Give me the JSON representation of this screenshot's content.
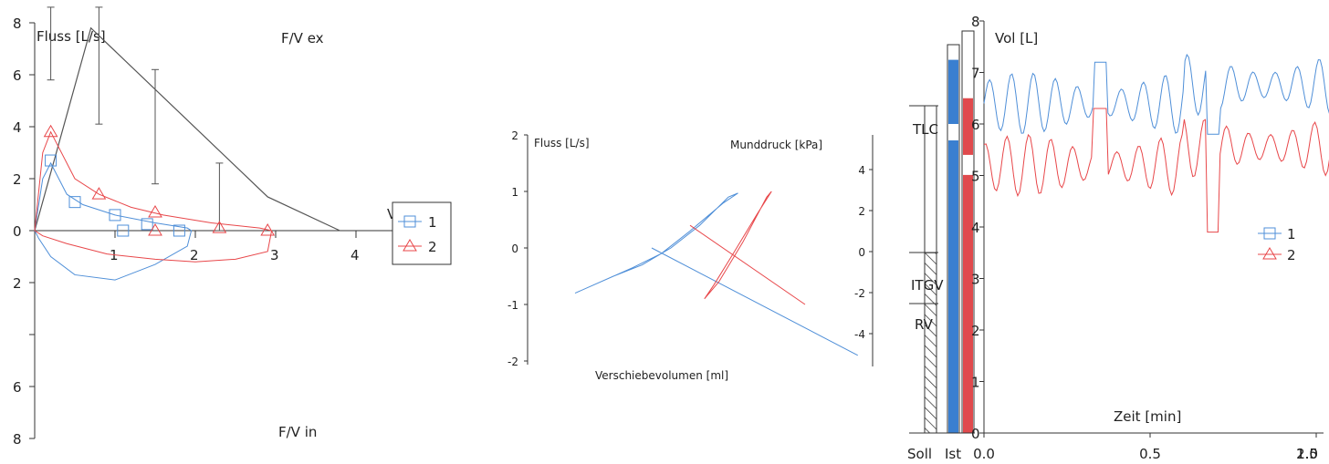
{
  "colors": {
    "series1": "#4f8fd8",
    "series2": "#e8474a",
    "reference": "#555555",
    "axis": "#333333",
    "bar_blue": "#3a7fd0",
    "bar_red": "#e04a4d"
  },
  "chart_data": [
    {
      "type": "line",
      "panel": "flow-volume",
      "title_top": "F/V ex",
      "title_bottom": "F/V in",
      "ylabel": "Fluss [L/s]",
      "xlabel": "V",
      "y_ticks": [
        "8",
        "6",
        "4",
        "2",
        "0",
        "2",
        "",
        "6",
        "8"
      ],
      "y_tick_values": [
        8,
        6,
        4,
        2,
        0,
        -2,
        -4,
        -6,
        -8
      ],
      "x_ticks": [
        "1",
        "2",
        "3",
        "4"
      ],
      "x_tick_values": [
        1,
        2,
        3,
        4
      ],
      "xlim": [
        0,
        4.5
      ],
      "ylim": [
        -8,
        8
      ],
      "reference_curve": {
        "x": [
          0,
          0.7,
          2.9,
          3.8
        ],
        "y": [
          0,
          7.8,
          1.3,
          0
        ]
      },
      "error_bars": [
        {
          "x": 0.2,
          "y": 8.3,
          "lo": 5.8,
          "hi": 8.6
        },
        {
          "x": 0.8,
          "y": 7.6,
          "lo": 4.1,
          "hi": 8.6
        },
        {
          "x": 1.5,
          "y": 4.0,
          "lo": 1.8,
          "hi": 6.2
        },
        {
          "x": 2.3,
          "y": 1.3,
          "lo": 0.0,
          "hi": 2.6
        }
      ],
      "series": [
        {
          "name": "1",
          "marker": "square",
          "x": [
            0,
            0.1,
            0.2,
            0.4,
            0.6,
            1.0,
            1.5,
            1.9,
            1.95,
            1.9,
            1.5,
            1.0,
            0.5,
            0.2,
            0.05,
            0
          ],
          "y": [
            0,
            2.0,
            2.6,
            1.4,
            1.0,
            0.6,
            0.3,
            0.1,
            0,
            -0.6,
            -1.3,
            -1.9,
            -1.7,
            -1.0,
            -0.3,
            0
          ],
          "markers_x": [
            0.2,
            0.5,
            1.0,
            1.1,
            1.4,
            1.8
          ],
          "markers_y": [
            2.7,
            1.1,
            0.6,
            0,
            0.25,
            0
          ]
        },
        {
          "name": "2",
          "marker": "triangle",
          "x": [
            0,
            0.1,
            0.2,
            0.5,
            0.8,
            1.2,
            1.6,
            2.2,
            2.8,
            2.95,
            2.9,
            2.5,
            2.0,
            1.5,
            0.9,
            0.4,
            0.1,
            0
          ],
          "y": [
            0,
            3.0,
            3.8,
            2.0,
            1.4,
            0.9,
            0.6,
            0.3,
            0.1,
            0,
            -0.8,
            -1.1,
            -1.2,
            -1.1,
            -0.9,
            -0.5,
            -0.2,
            0
          ],
          "markers_x": [
            0.2,
            0.8,
            1.5,
            1.5,
            2.3,
            2.9
          ],
          "markers_y": [
            3.8,
            1.4,
            0.7,
            0,
            0.1,
            0
          ]
        }
      ]
    },
    {
      "type": "line",
      "panel": "pressure-volume",
      "ylabel_left": "Fluss [L/s]",
      "ylabel_right": "Munddruck [kPa]",
      "xlabel": "Verschiebevolumen [ml]",
      "left_ticks": [
        "2",
        "1",
        "0",
        "-1",
        "-2"
      ],
      "left_tick_values": [
        2,
        1,
        0,
        -1,
        -2
      ],
      "right_ticks": [
        "4",
        "2",
        "0",
        "-2",
        "-4"
      ],
      "right_tick_values": [
        4,
        2,
        0,
        -2,
        -4
      ],
      "ylim": [
        -2,
        2
      ],
      "series": [
        {
          "name": "1",
          "loop": [
            [
              -1.0,
              -0.8
            ],
            [
              -0.6,
              -0.5
            ],
            [
              -0.3,
              -0.3
            ],
            [
              0.0,
              0.0
            ],
            [
              0.3,
              0.4
            ],
            [
              0.6,
              0.9
            ],
            [
              0.7,
              0.97
            ],
            [
              0.55,
              0.8
            ],
            [
              0.2,
              0.3
            ],
            [
              -0.1,
              -0.1
            ],
            [
              -0.4,
              -0.35
            ],
            [
              -0.8,
              -0.65
            ],
            [
              -1.0,
              -0.8
            ]
          ],
          "line": [
            [
              -0.2,
              0.0
            ],
            [
              1.95,
              -1.9
            ]
          ]
        },
        {
          "name": "2",
          "loop": [
            [
              0.35,
              -0.9
            ],
            [
              0.5,
              -0.6
            ],
            [
              0.75,
              0.1
            ],
            [
              1.0,
              0.9
            ],
            [
              1.05,
              1.0
            ],
            [
              0.9,
              0.6
            ],
            [
              0.65,
              -0.1
            ],
            [
              0.45,
              -0.65
            ],
            [
              0.35,
              -0.9
            ]
          ],
          "line": [
            [
              0.2,
              0.4
            ],
            [
              1.4,
              -1.0
            ]
          ]
        }
      ]
    },
    {
      "type": "line",
      "panel": "volume-time",
      "ylabel": "Vol [L]",
      "xlabel": "Zeit [min]",
      "x_ticks": [
        "0.0",
        "0.5",
        "1.0",
        "1.5",
        "2.0"
      ],
      "x_tick_values": [
        0,
        0.5,
        1.0,
        1.5,
        2.0
      ],
      "y_ticks": [
        "0",
        "1",
        "2",
        "3",
        "4",
        "5",
        "6",
        "7",
        "8"
      ],
      "y_tick_values": [
        0,
        1,
        2,
        3,
        4,
        5,
        6,
        7,
        8
      ],
      "xlim": [
        0,
        2.0
      ],
      "ylim": [
        0,
        8
      ],
      "bar_labels": {
        "soll": "Soll",
        "ist": "Ist"
      },
      "bars": {
        "soll": {
          "TLC": 6.3,
          "ITGV": 3.5,
          "RV": 2.6
        },
        "ist_series1": {
          "TLC": 7.6,
          "ITGV": 6.0,
          "RV": 0
        },
        "ist_series2": {
          "TLC": 6.5,
          "ITGV": 5.4,
          "RV": 0
        }
      },
      "lung_labels": [
        "TLC",
        "ITGV",
        "RV"
      ],
      "series": [
        {
          "name": "1",
          "baseline": 6.4,
          "amplitude": 0.6,
          "x_end": 1.47,
          "end_y": 7.6
        },
        {
          "name": "2",
          "baseline": 5.2,
          "amplitude": 0.6,
          "x_end": 1.65,
          "end_y": 5.8
        }
      ],
      "legend": [
        {
          "name": "1",
          "marker": "square"
        },
        {
          "name": "2",
          "marker": "triangle"
        }
      ]
    }
  ]
}
